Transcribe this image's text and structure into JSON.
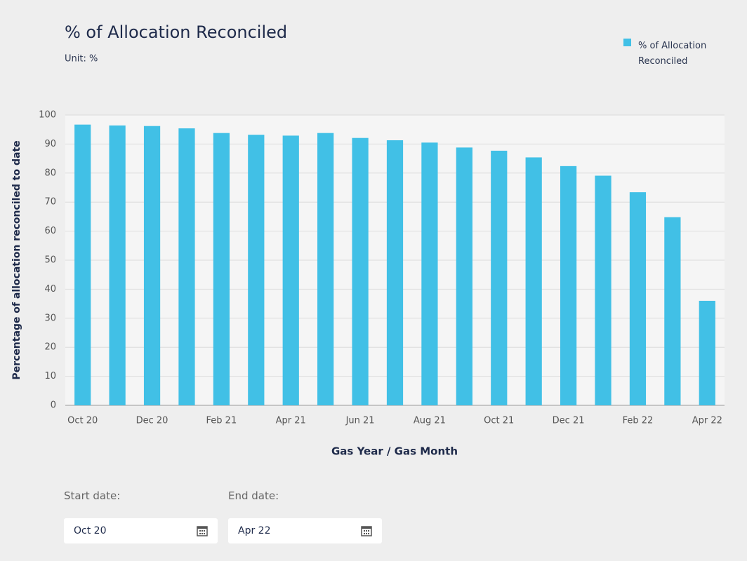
{
  "chart_data": {
    "type": "bar",
    "title": "% of Allocation Reconciled",
    "subtitle": "Unit: %",
    "x_label": "Gas Year / Gas Month",
    "y_label": "Percentage of allocation reconciled to date",
    "categories": [
      "Oct 20",
      null,
      "Dec 20",
      null,
      "Feb 21",
      null,
      "Apr 21",
      null,
      "Jun 21",
      null,
      "Aug 21",
      null,
      "Oct 21",
      null,
      "Dec 21",
      null,
      "Feb 22",
      null,
      "Apr 22"
    ],
    "series": [
      {
        "name": "% of Allocation Reconciled",
        "color": "#41c0e6",
        "values": [
          96.7,
          96.4,
          96.2,
          95.4,
          93.8,
          93.2,
          92.9,
          93.8,
          92.1,
          91.3,
          90.5,
          88.8,
          87.7,
          85.4,
          82.4,
          79.1,
          73.4,
          64.8,
          36.0
        ]
      }
    ],
    "ylim": [
      0,
      100
    ],
    "yticks": [
      0,
      10,
      20,
      30,
      40,
      50,
      60,
      70,
      80,
      90,
      100
    ],
    "grid": true,
    "legend": "top-right"
  },
  "controls": {
    "start": {
      "label": "Start date:",
      "value": "Oct 20"
    },
    "end": {
      "label": "End date:",
      "value": "Apr 22"
    }
  }
}
